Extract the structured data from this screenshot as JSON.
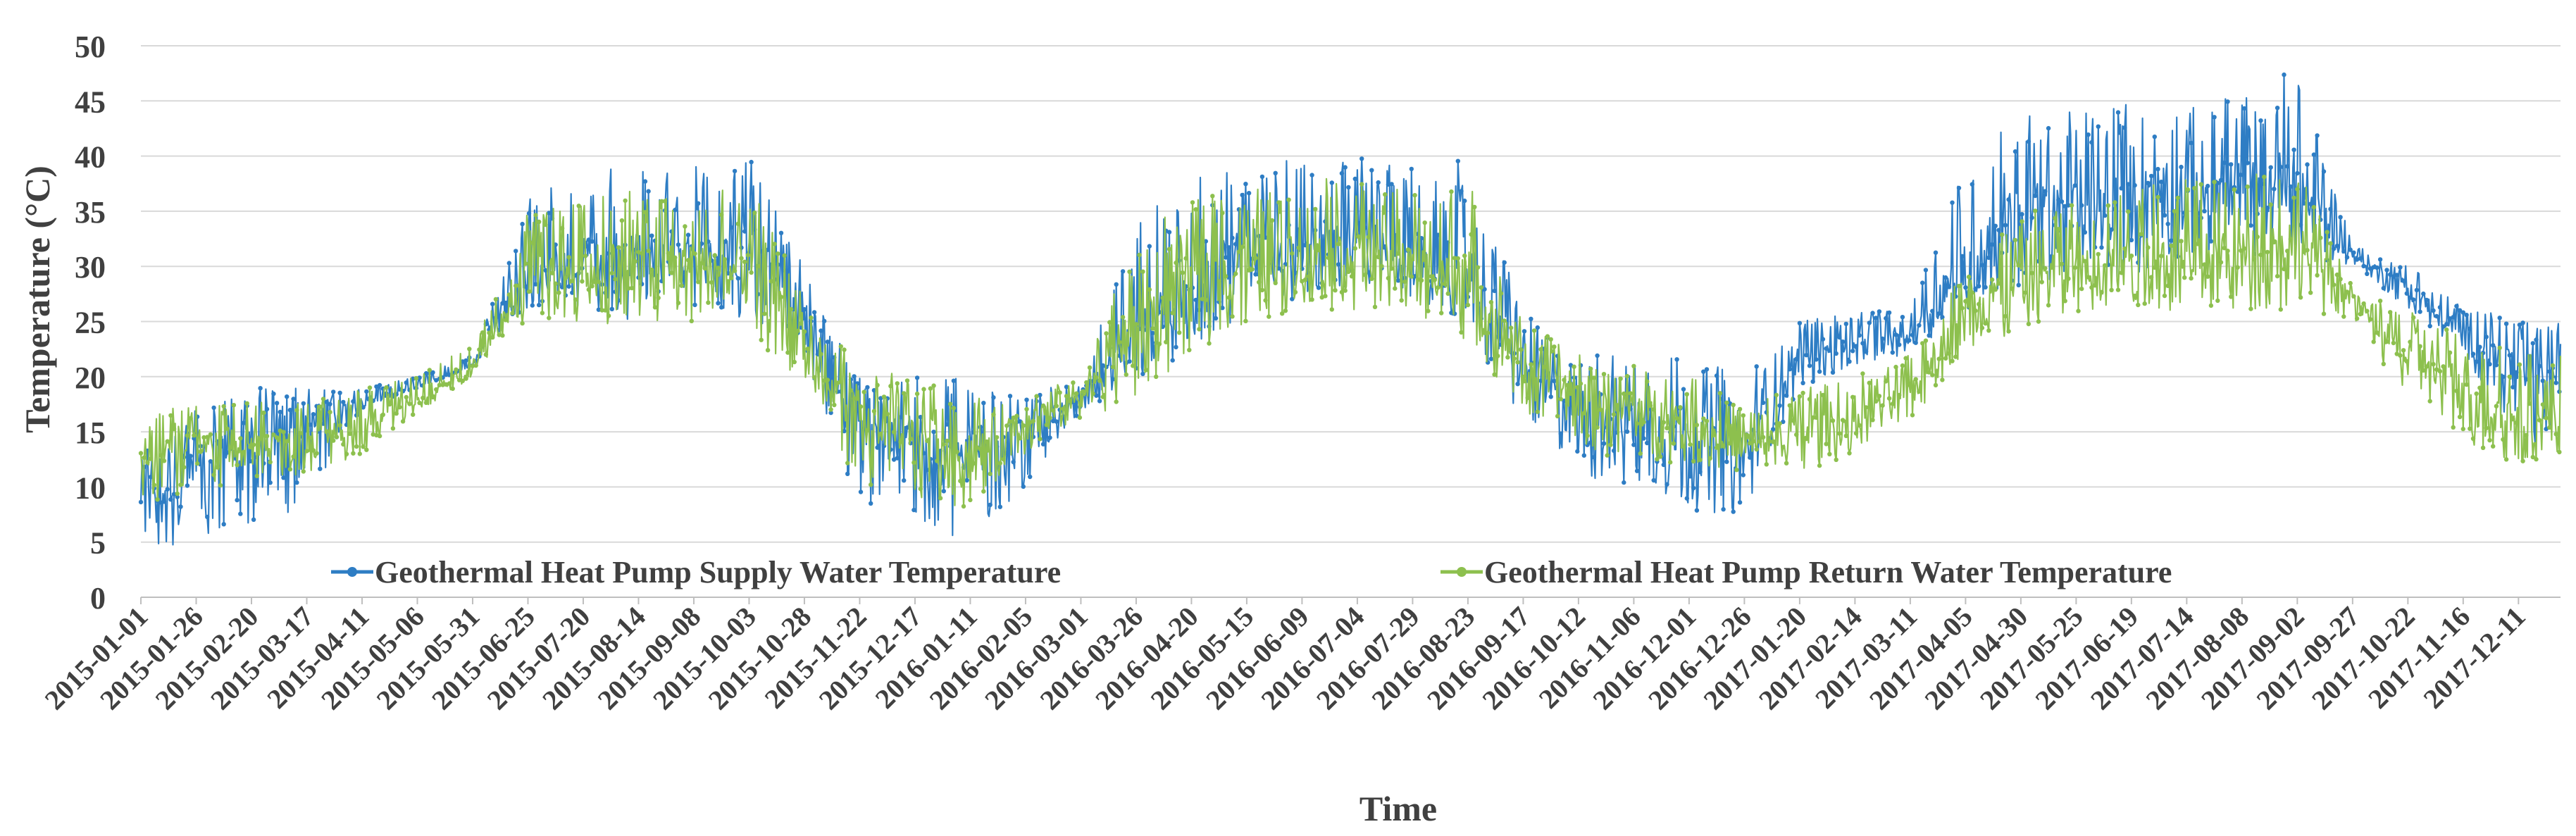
{
  "chart_data": {
    "type": "line",
    "title": "",
    "xlabel": "Time",
    "ylabel": "Temperature (°C)",
    "ylim": [
      0,
      50
    ],
    "yticks": [
      0,
      5,
      10,
      15,
      20,
      25,
      30,
      35,
      40,
      45,
      50
    ],
    "grid": "horizontal",
    "legend_position": "bottom-inside",
    "x_tick_labels": [
      "2015-01-01",
      "2015-01-26",
      "2015-02-20",
      "2015-03-17",
      "2015-04-11",
      "2015-05-06",
      "2015-05-31",
      "2015-06-25",
      "2015-07-20",
      "2015-08-14",
      "2015-09-08",
      "2015-10-03",
      "2015-10-28",
      "2015-11-22",
      "2015-12-17",
      "2016-01-11",
      "2016-02-05",
      "2016-03-01",
      "2016-03-26",
      "2016-04-20",
      "2016-05-15",
      "2016-06-09",
      "2016-07-04",
      "2016-07-29",
      "2016-08-23",
      "2016-09-17",
      "2016-10-12",
      "2016-11-06",
      "2016-12-01",
      "2016-12-26",
      "2017-01-20",
      "2017-02-14",
      "2017-03-11",
      "2017-04-05",
      "2017-04-30",
      "2017-05-25",
      "2017-06-19",
      "2017-07-14",
      "2017-08-08",
      "2017-09-02",
      "2017-09-27",
      "2017-10-22",
      "2017-11-16",
      "2017-12-11"
    ],
    "x_day_range": [
      0,
      1094
    ],
    "series": [
      {
        "name": "Geothermal Heat Pump Supply Water Temperature",
        "color": "#2E7DC4",
        "envelope": {
          "days": [
            0,
            25,
            50,
            75,
            100,
            125,
            150,
            165,
            175,
            200,
            225,
            250,
            275,
            300,
            305,
            325,
            350,
            375,
            400,
            425,
            450,
            475,
            500,
            525,
            550,
            575,
            600,
            625,
            650,
            700,
            725,
            750,
            775,
            800,
            825,
            850,
            875,
            900,
            925,
            950,
            975,
            1000,
            1025,
            1050,
            1075,
            1094
          ],
          "low": [
            4,
            5,
            6,
            8,
            17,
            19,
            21,
            25,
            26,
            26,
            25,
            26,
            25,
            22,
            18,
            8,
            6,
            5,
            10,
            17,
            19,
            22,
            26,
            27,
            28,
            27,
            24,
            16,
            11,
            8,
            7,
            19,
            21,
            22,
            26,
            28,
            29,
            29,
            30,
            31,
            31,
            30,
            26,
            22,
            14,
            14
          ],
          "high": [
            13,
            17,
            19,
            19,
            19,
            20,
            22,
            30,
            37,
            39,
            39,
            39,
            40,
            30,
            27,
            20,
            20,
            20,
            19,
            20,
            34,
            38,
            39,
            40,
            40,
            39,
            40,
            26,
            22,
            22,
            20,
            25,
            26,
            26,
            40,
            44,
            44,
            45,
            45,
            46,
            48,
            32,
            30,
            27,
            25,
            25
          ],
          "mean": [
            9,
            12,
            14,
            15,
            18,
            19,
            21,
            27,
            30,
            31,
            31,
            31,
            32,
            26,
            22,
            15,
            14,
            13,
            15,
            18,
            24,
            30,
            31,
            32,
            32,
            31,
            30,
            21,
            17,
            15,
            13,
            22,
            23,
            24,
            30,
            35,
            35,
            36,
            37,
            37,
            38,
            31,
            28,
            24,
            20,
            20
          ]
        }
      },
      {
        "name": "Geothermal Heat Pump Return Water Temperature",
        "color": "#8DC04E",
        "envelope": {
          "days": [
            0,
            25,
            50,
            75,
            100,
            125,
            150,
            165,
            175,
            200,
            225,
            250,
            275,
            300,
            305,
            325,
            350,
            375,
            400,
            425,
            450,
            475,
            500,
            525,
            550,
            575,
            600,
            625,
            650,
            700,
            725,
            750,
            775,
            800,
            825,
            850,
            875,
            900,
            925,
            950,
            975,
            1000,
            1025,
            1050,
            1075,
            1094
          ],
          "low": [
            8,
            10,
            10,
            11,
            13,
            16,
            20,
            24,
            25,
            25,
            24,
            25,
            24,
            19,
            17,
            10,
            9,
            8,
            13,
            16,
            18,
            22,
            25,
            26,
            26,
            26,
            23,
            17,
            13,
            12,
            11,
            11,
            13,
            16,
            22,
            24,
            25,
            26,
            26,
            26,
            26,
            25,
            18,
            14,
            12,
            12
          ],
          "high": [
            16,
            18,
            18,
            18,
            19,
            20,
            23,
            29,
            35,
            37,
            37,
            36,
            38,
            28,
            27,
            21,
            20,
            18,
            19,
            20,
            33,
            36,
            37,
            38,
            38,
            37,
            38,
            25,
            22,
            20,
            18,
            19,
            20,
            22,
            30,
            35,
            36,
            37,
            38,
            38,
            40,
            28,
            26,
            24,
            22,
            22
          ],
          "mean": [
            12,
            14,
            14,
            14,
            16,
            18,
            21,
            26,
            29,
            30,
            30,
            30,
            30,
            24,
            21,
            16,
            15,
            13,
            16,
            18,
            25,
            29,
            30,
            31,
            31,
            30,
            29,
            21,
            18,
            16,
            14,
            15,
            16,
            19,
            26,
            29,
            30,
            31,
            31,
            31,
            32,
            27,
            22,
            19,
            16,
            16
          ]
        }
      }
    ]
  }
}
